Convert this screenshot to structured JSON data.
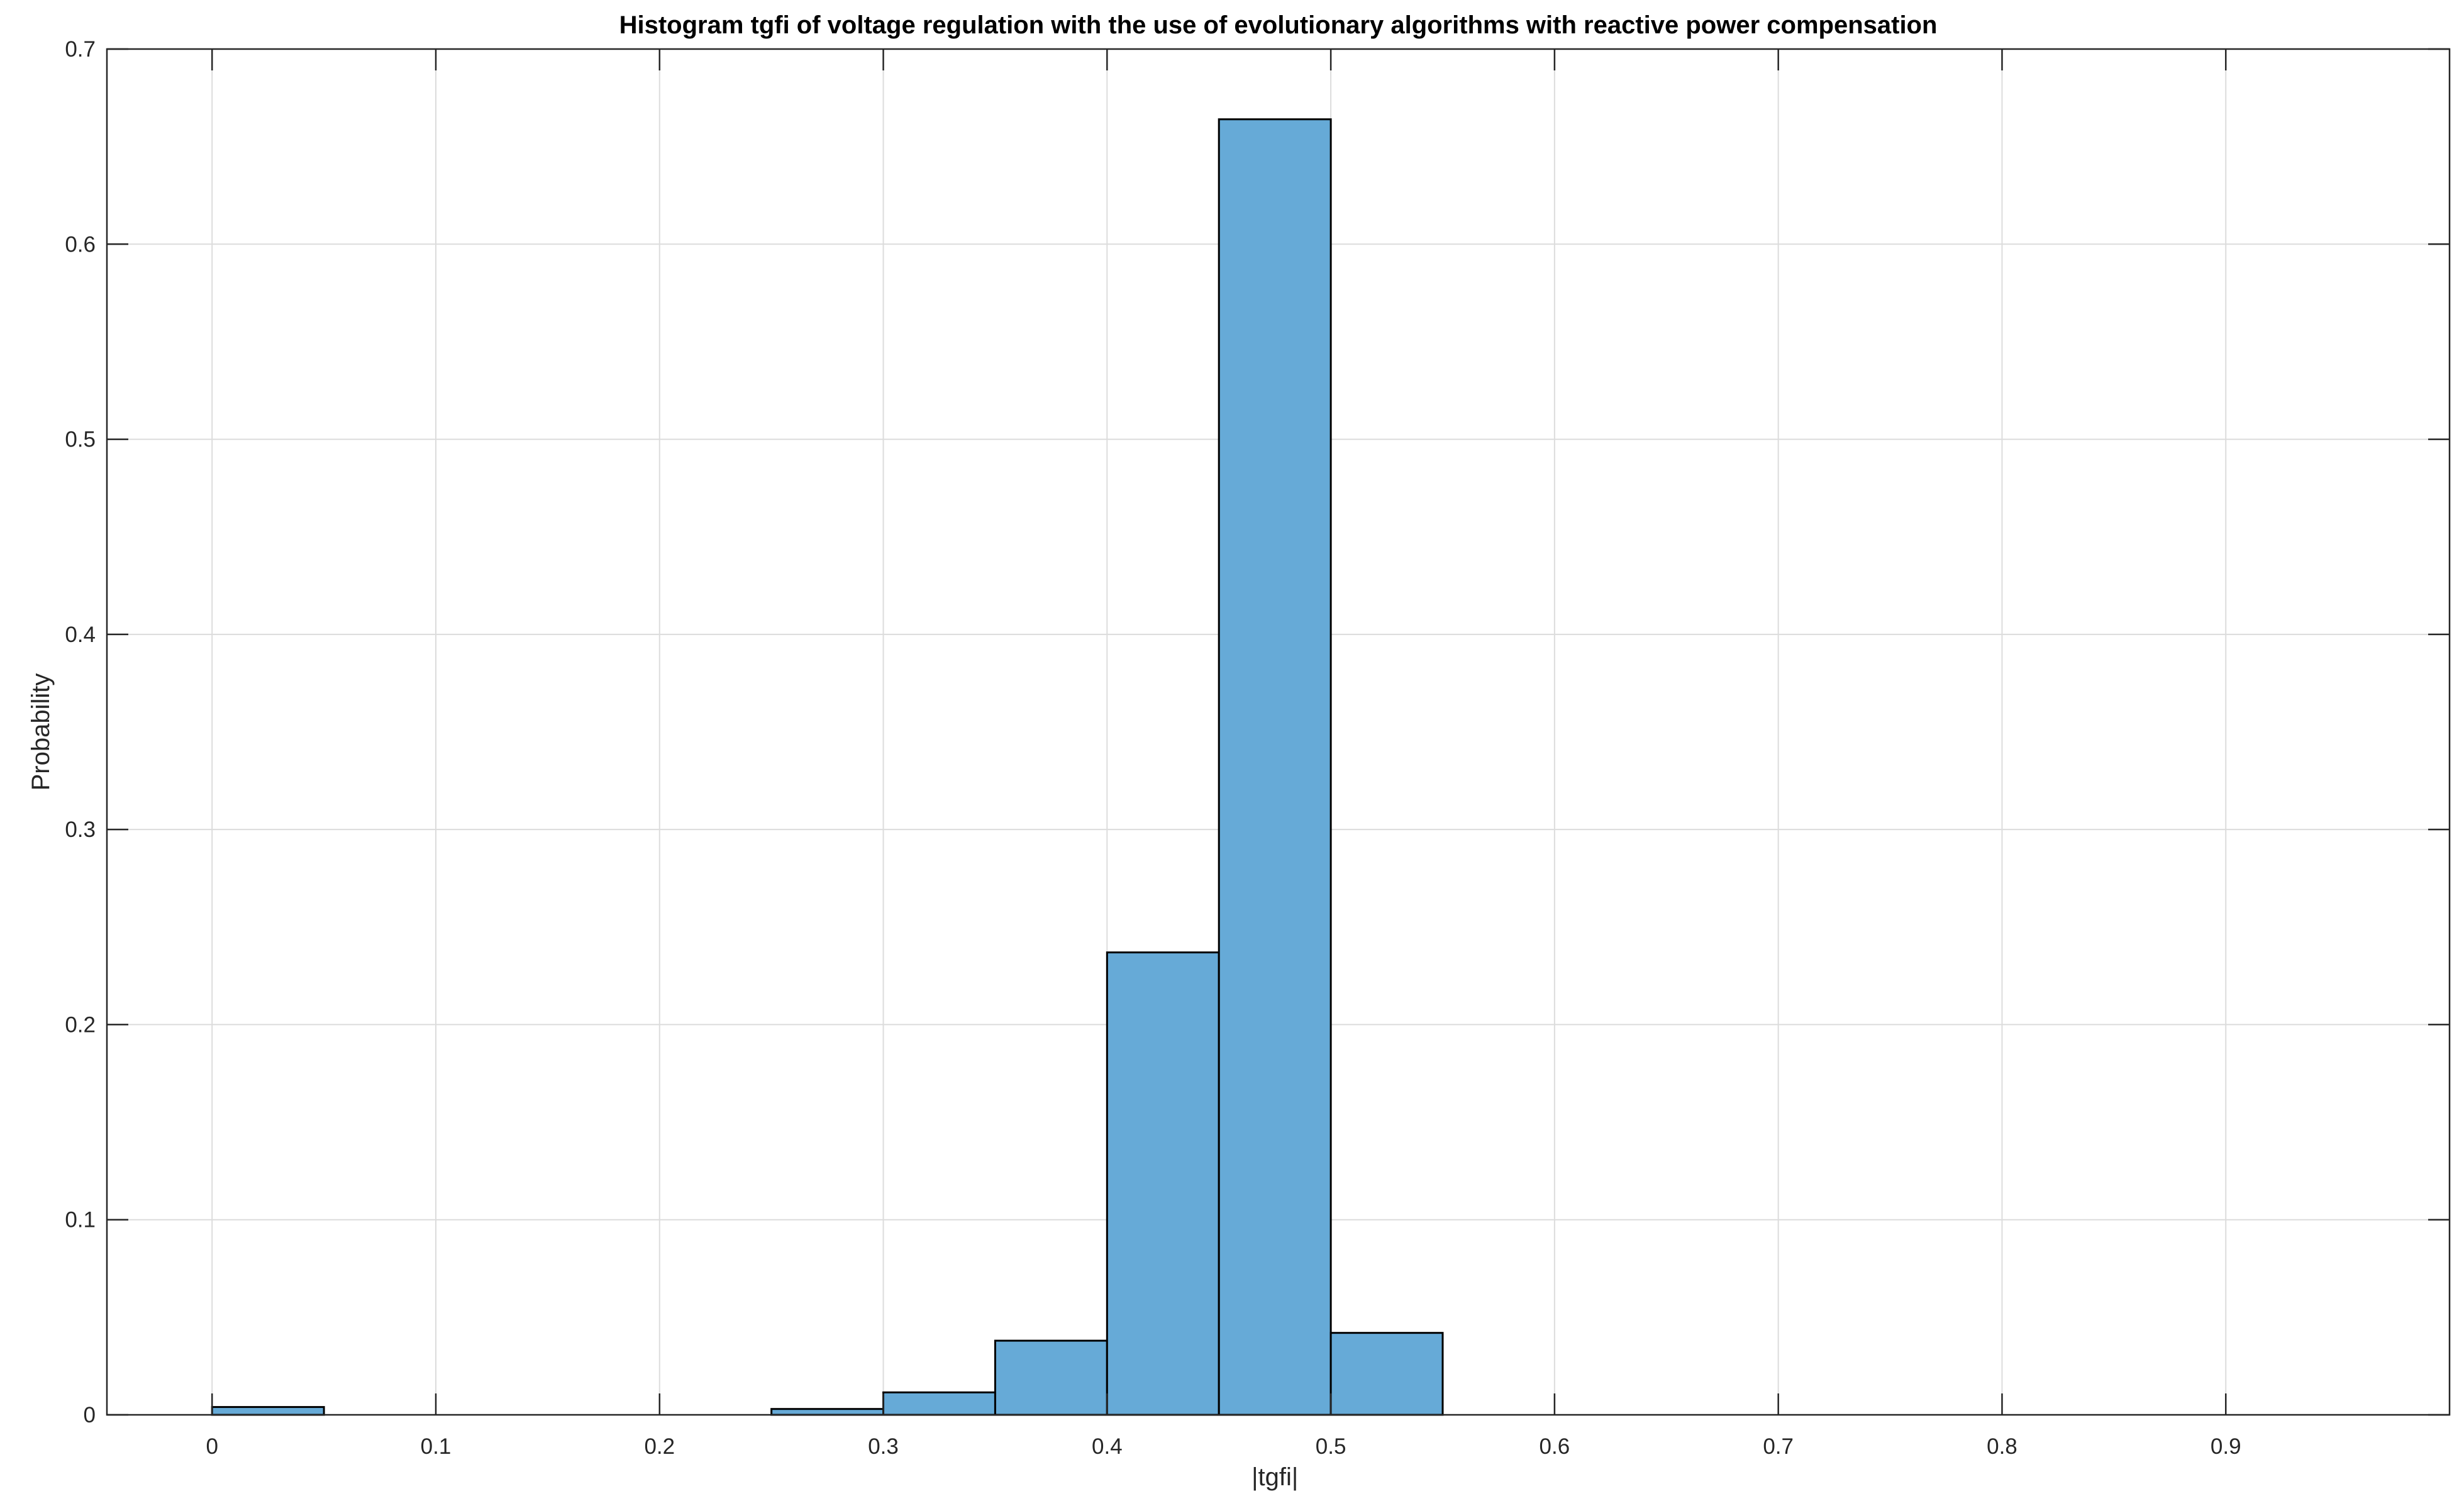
{
  "chart_data": {
    "type": "bar",
    "subtype": "histogram",
    "title": "Histogram tgfi of voltage regulation with the use of evolutionary algorithms with reactive power compensation",
    "xlabel": "|tgfi|",
    "ylabel": "Probability",
    "xlim": [
      -0.047,
      1.0
    ],
    "ylim": [
      0,
      0.7
    ],
    "xticks": [
      0,
      0.1,
      0.2,
      0.3,
      0.4,
      0.5,
      0.6,
      0.7,
      0.8,
      0.9
    ],
    "xtick_labels": [
      "0",
      "0.1",
      "0.2",
      "0.3",
      "0.4",
      "0.5",
      "0.6",
      "0.7",
      "0.8",
      "0.9"
    ],
    "yticks": [
      0,
      0.1,
      0.2,
      0.3,
      0.4,
      0.5,
      0.6,
      0.7
    ],
    "ytick_labels": [
      "0",
      "0.1",
      "0.2",
      "0.3",
      "0.4",
      "0.5",
      "0.6",
      "0.7"
    ],
    "grid": true,
    "bar_color": "#66aad7",
    "edge_color": "#000000",
    "bin_edges": [
      0,
      0.05,
      0.1,
      0.15,
      0.2,
      0.25,
      0.3,
      0.35,
      0.4,
      0.45,
      0.5,
      0.55,
      0.6,
      0.65,
      0.7,
      0.75,
      0.8,
      0.85,
      0.9,
      0.95
    ],
    "values": [
      0.004,
      0,
      0,
      0,
      0,
      0.003,
      0.0115,
      0.038,
      0.237,
      0.664,
      0.042,
      0,
      0,
      0,
      0,
      0,
      0,
      0,
      0
    ]
  }
}
